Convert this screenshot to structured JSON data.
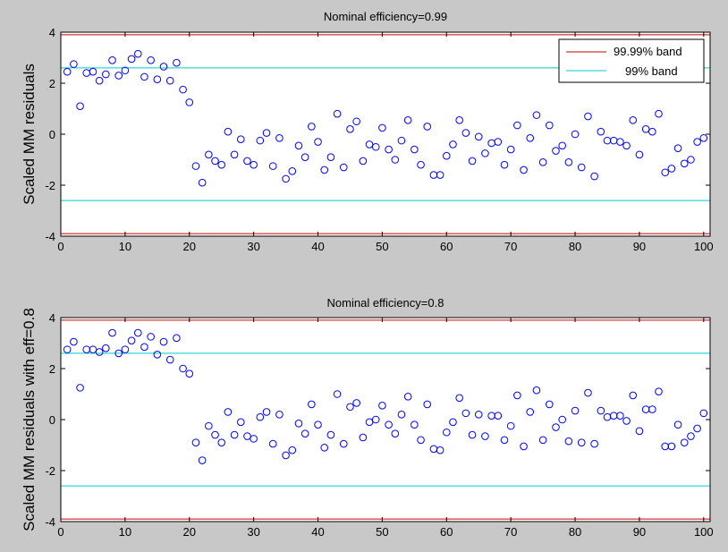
{
  "figure": {
    "background": "#c8c8c8",
    "axes_background": "#ffffff"
  },
  "chart_data": [
    {
      "type": "scatter",
      "title": "Nominal efficiency=0.99",
      "xlabel": "",
      "ylabel": "Scaled MM residuals",
      "xlim": [
        0,
        101
      ],
      "ylim": [
        -4,
        4
      ],
      "xticks": [
        "0",
        "10",
        "20",
        "30",
        "40",
        "50",
        "60",
        "70",
        "80",
        "90",
        "100"
      ],
      "yticks": [
        "-4",
        "-2",
        "0",
        "2",
        "4"
      ],
      "grid": false,
      "legend_position": "top-right",
      "series": [
        {
          "marker": "circle",
          "color": "#0000ff",
          "x": [
            1,
            2,
            3,
            4,
            5,
            6,
            7,
            8,
            9,
            10,
            11,
            12,
            13,
            14,
            15,
            16,
            17,
            18,
            19,
            20,
            21,
            22,
            23,
            24,
            25,
            26,
            27,
            28,
            29,
            30,
            31,
            32,
            33,
            34,
            35,
            36,
            37,
            38,
            39,
            40,
            41,
            42,
            43,
            44,
            45,
            46,
            47,
            48,
            49,
            50,
            51,
            52,
            53,
            54,
            55,
            56,
            57,
            58,
            59,
            60,
            61,
            62,
            63,
            64,
            65,
            66,
            67,
            68,
            69,
            70,
            71,
            72,
            73,
            74,
            75,
            76,
            77,
            78,
            79,
            80,
            81,
            82,
            83,
            84,
            85,
            86,
            87,
            88,
            89,
            90,
            91,
            92,
            93,
            94,
            95,
            96,
            97,
            98,
            99,
            100
          ],
          "y": [
            2.45,
            2.75,
            1.1,
            2.4,
            2.45,
            2.1,
            2.35,
            2.9,
            2.3,
            2.5,
            2.95,
            3.15,
            2.25,
            2.9,
            2.15,
            2.65,
            2.1,
            2.8,
            1.75,
            1.25,
            -1.25,
            -1.9,
            -0.8,
            -1.05,
            -1.2,
            0.1,
            -0.8,
            -0.2,
            -1.05,
            -1.2,
            -0.25,
            0.05,
            -1.25,
            -0.15,
            -1.75,
            -1.45,
            -0.45,
            -0.9,
            0.3,
            -0.3,
            -1.4,
            -0.9,
            0.8,
            -1.3,
            0.2,
            0.5,
            -1.05,
            -0.4,
            -0.5,
            0.25,
            -0.6,
            -1.0,
            -0.25,
            0.55,
            -0.6,
            -1.2,
            0.3,
            -1.6,
            -1.6,
            -0.85,
            -0.4,
            0.55,
            0.05,
            -1.05,
            -0.1,
            -0.75,
            -0.35,
            -0.3,
            -1.2,
            -0.6,
            0.35,
            -1.4,
            -0.15,
            0.75,
            -1.1,
            0.35,
            -0.65,
            -0.45,
            -1.1,
            0.0,
            -1.3,
            0.7,
            -1.65,
            0.1,
            -0.25,
            -0.25,
            -0.3,
            -0.45,
            0.55,
            -0.8,
            0.2,
            0.1,
            0.8,
            -1.5,
            -1.35,
            -0.55,
            -1.15,
            -1.0,
            -0.3,
            -0.15
          ]
        }
      ],
      "hlines": [
        {
          "name": "99.99% band",
          "color": "#cc0000",
          "y": [
            3.9,
            -3.9
          ]
        },
        {
          "name": "99% band",
          "color": "#00cccc",
          "y": [
            2.6,
            -2.6
          ]
        }
      ],
      "legend": [
        "99.99% band",
        "99% band"
      ]
    },
    {
      "type": "scatter",
      "title": "Nominal efficiency=0.8",
      "xlabel": "",
      "ylabel": "Scaled MM residuals with eff=0.8",
      "xlim": [
        0,
        101
      ],
      "ylim": [
        -4,
        4
      ],
      "xticks": [
        "0",
        "10",
        "20",
        "30",
        "40",
        "50",
        "60",
        "70",
        "80",
        "90",
        "100"
      ],
      "yticks": [
        "-4",
        "-2",
        "0",
        "2",
        "4"
      ],
      "grid": false,
      "series": [
        {
          "marker": "circle",
          "color": "#0000ff",
          "x": [
            1,
            2,
            3,
            4,
            5,
            6,
            7,
            8,
            9,
            10,
            11,
            12,
            13,
            14,
            15,
            16,
            17,
            18,
            19,
            20,
            21,
            22,
            23,
            24,
            25,
            26,
            27,
            28,
            29,
            30,
            31,
            32,
            33,
            34,
            35,
            36,
            37,
            38,
            39,
            40,
            41,
            42,
            43,
            44,
            45,
            46,
            47,
            48,
            49,
            50,
            51,
            52,
            53,
            54,
            55,
            56,
            57,
            58,
            59,
            60,
            61,
            62,
            63,
            64,
            65,
            66,
            67,
            68,
            69,
            70,
            71,
            72,
            73,
            74,
            75,
            76,
            77,
            78,
            79,
            80,
            81,
            82,
            83,
            84,
            85,
            86,
            87,
            88,
            89,
            90,
            91,
            92,
            93,
            94,
            95,
            96,
            97,
            98,
            99,
            100
          ],
          "y": [
            2.75,
            3.05,
            1.25,
            2.75,
            2.75,
            2.65,
            2.8,
            3.4,
            2.6,
            2.75,
            3.1,
            3.4,
            2.85,
            3.25,
            2.55,
            3.05,
            2.35,
            3.2,
            2.0,
            1.8,
            -0.9,
            -1.6,
            -0.25,
            -0.6,
            -0.9,
            0.3,
            -0.6,
            -0.1,
            -0.65,
            -0.75,
            0.1,
            0.3,
            -0.95,
            0.2,
            -1.4,
            -1.2,
            -0.15,
            -0.55,
            0.6,
            -0.2,
            -1.1,
            -0.6,
            1.0,
            -0.95,
            0.5,
            0.65,
            -0.7,
            -0.1,
            0.0,
            0.55,
            -0.2,
            -0.55,
            0.2,
            0.9,
            -0.2,
            -0.8,
            0.6,
            -1.15,
            -1.2,
            -0.5,
            -0.1,
            0.85,
            0.25,
            -0.6,
            0.2,
            -0.65,
            0.15,
            0.15,
            -0.8,
            -0.25,
            0.95,
            -1.05,
            0.3,
            1.15,
            -0.8,
            0.6,
            -0.3,
            0.0,
            -0.85,
            0.35,
            -0.9,
            1.05,
            -0.95,
            0.35,
            0.1,
            0.15,
            0.15,
            -0.05,
            0.95,
            -0.45,
            0.4,
            0.4,
            1.1,
            -1.05,
            -1.05,
            -0.2,
            -0.9,
            -0.65,
            -0.35,
            0.25
          ]
        }
      ],
      "hlines": [
        {
          "name": "99.99% band",
          "color": "#cc0000",
          "y": [
            3.9,
            -3.9
          ]
        },
        {
          "name": "99% band",
          "color": "#00cccc",
          "y": [
            2.6,
            -2.6
          ]
        }
      ]
    }
  ]
}
